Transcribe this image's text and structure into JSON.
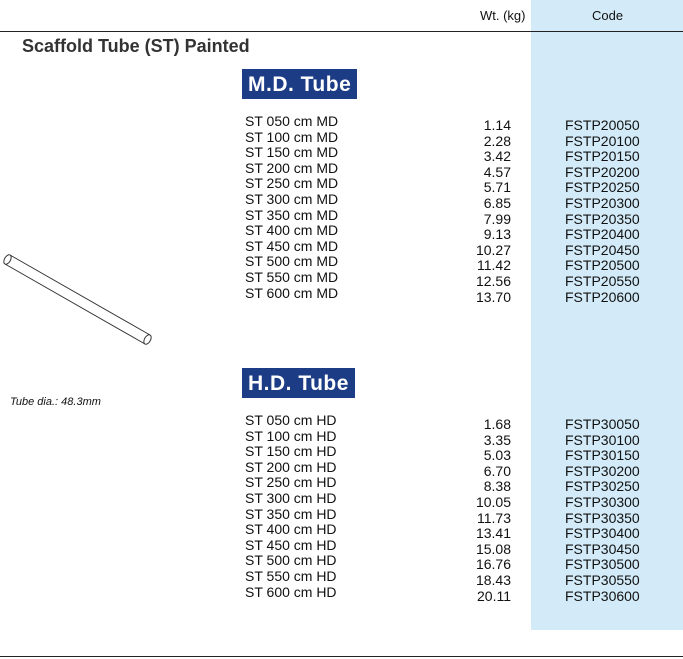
{
  "header": {
    "weight": "Wt. (kg)",
    "code": "Code"
  },
  "title": "Scaffold Tube (ST) Painted",
  "note": "Tube dia.: 48.3mm",
  "groups": [
    {
      "label": "M.D. Tube",
      "rows": [
        [
          "ST 050 cm MD",
          "1.14",
          "FSTP20050"
        ],
        [
          "ST 100 cm MD",
          "2.28",
          "FSTP20100"
        ],
        [
          "ST 150 cm MD",
          "3.42",
          "FSTP20150"
        ],
        [
          "ST 200 cm MD",
          "4.57",
          "FSTP20200"
        ],
        [
          "ST 250 cm MD",
          "5.71",
          "FSTP20250"
        ],
        [
          "ST 300 cm MD",
          "6.85",
          "FSTP20300"
        ],
        [
          "ST 350 cm MD",
          "7.99",
          "FSTP20350"
        ],
        [
          "ST 400 cm MD",
          "9.13",
          "FSTP20400"
        ],
        [
          "ST 450 cm MD",
          "10.27",
          "FSTP20450"
        ],
        [
          "ST 500 cm MD",
          "11.42",
          "FSTP20500"
        ],
        [
          "ST 550 cm MD",
          "12.56",
          "FSTP20550"
        ],
        [
          "ST 600 cm MD",
          "13.70",
          "FSTP20600"
        ]
      ]
    },
    {
      "label": "H.D. Tube",
      "rows": [
        [
          "ST 050 cm HD",
          "1.68",
          "FSTP30050"
        ],
        [
          "ST 100 cm HD",
          "3.35",
          "FSTP30100"
        ],
        [
          "ST 150 cm HD",
          "5.03",
          "FSTP30150"
        ],
        [
          "ST 200 cm HD",
          "6.70",
          "FSTP30200"
        ],
        [
          "ST 250 cm HD",
          "8.38",
          "FSTP30250"
        ],
        [
          "ST 300 cm HD",
          "10.05",
          "FSTP30300"
        ],
        [
          "ST 350 cm HD",
          "11.73",
          "FSTP30350"
        ],
        [
          "ST 400 cm HD",
          "13.41",
          "FSTP30400"
        ],
        [
          "ST 450 cm HD",
          "15.08",
          "FSTP30450"
        ],
        [
          "ST 500 cm HD",
          "16.76",
          "FSTP30500"
        ],
        [
          "ST 550 cm HD",
          "18.43",
          "FSTP30550"
        ],
        [
          "ST 600 cm HD",
          "20.11",
          "FSTP30600"
        ]
      ]
    }
  ]
}
